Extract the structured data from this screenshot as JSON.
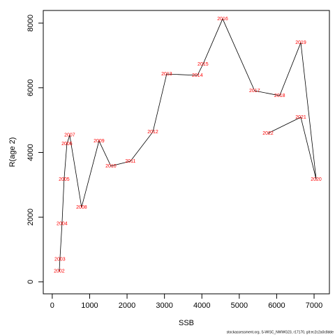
{
  "chart_data": {
    "type": "line",
    "xlabel": "SSB",
    "ylabel": "R(age 2)",
    "footnote": "stockassessment.org, S-WISC_NWWG23, r17170, git:ec2c2a0c8dde",
    "x": [
      187,
      205,
      261,
      317,
      392,
      467,
      784,
      1250,
      1568,
      2090,
      2690,
      3060,
      3880,
      4030,
      4555,
      5410,
      6080,
      6645,
      7056,
      6645,
      5768
    ],
    "point_labels": [
      "2002",
      "2003",
      "2004",
      "2005",
      "2006",
      "2007",
      "2008",
      "2009",
      "2010",
      "2011",
      "2012",
      "2013",
      "2014",
      "2015",
      "2016",
      "2017",
      "2018",
      "2019",
      "2020",
      "2021",
      "2022"
    ],
    "series": [
      {
        "color": "#000000",
        "label_color": "#ff0000",
        "values": [
          323,
          690,
          1790,
          3170,
          4270,
          4530,
          2307,
          4356,
          3580,
          3730,
          4636,
          6426,
          6383,
          6728,
          8130,
          5908,
          5757,
          7396,
          3170,
          5089,
          4593
        ]
      }
    ],
    "xlim": [
      -240,
      7410
    ],
    "ylim": [
      -370,
      8390
    ],
    "xticks": [
      0,
      1000,
      2000,
      3000,
      4000,
      5000,
      6000,
      7000
    ],
    "yticks": [
      0,
      2000,
      4000,
      6000,
      8000
    ]
  }
}
